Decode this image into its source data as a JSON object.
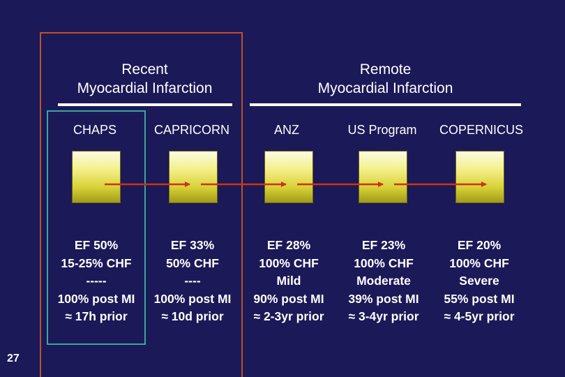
{
  "groups": {
    "recent": {
      "line1": "Recent",
      "line2": "Myocardial Infarction"
    },
    "remote": {
      "line1": "Remote",
      "line2": "Myocardial Infarction"
    }
  },
  "colors": {
    "background": "#1b1957",
    "recent_frame": "#c0502a",
    "chaps_frame": "#3aa89b",
    "arrow": "#cc3311",
    "box_fill": "#e8e060"
  },
  "trials": [
    {
      "name": "CHAPS",
      "ef": "EF 50%",
      "chf": "15-25% CHF",
      "severity": "-----",
      "post_mi": "100% post MI",
      "prior": "≈ 17h prior"
    },
    {
      "name": "CAPRICORN",
      "ef": "EF 33%",
      "chf": "50% CHF",
      "severity": "----",
      "post_mi": "100% post MI",
      "prior": "≈ 10d prior"
    },
    {
      "name": "ANZ",
      "ef": "EF 28%",
      "chf": "100% CHF",
      "severity": "Mild",
      "post_mi": "90% post MI",
      "prior": "≈ 2-3yr prior"
    },
    {
      "name": "US Program",
      "ef": "EF 23%",
      "chf": "100% CHF",
      "severity": "Moderate",
      "post_mi": "39% post MI",
      "prior": "≈ 3-4yr prior"
    },
    {
      "name": "COPERNICUS",
      "ef": "EF 20%",
      "chf": "100% CHF",
      "severity": "Severe",
      "post_mi": "55% post MI",
      "prior": "≈ 4-5yr prior"
    }
  ],
  "page_number": "27"
}
